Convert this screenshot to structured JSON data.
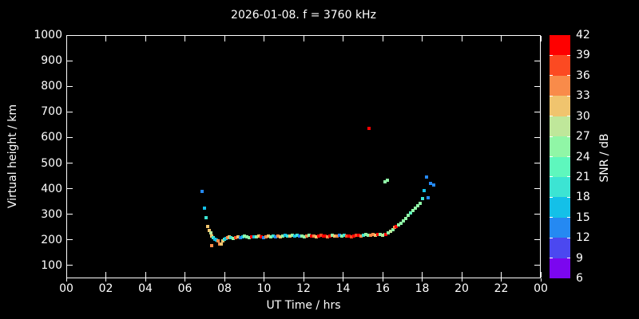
{
  "title": "2026-01-08. f = 3760 kHz",
  "x_axis": {
    "label": "UT Time / hrs",
    "tick_labels": [
      "00",
      "02",
      "04",
      "06",
      "08",
      "10",
      "12",
      "14",
      "16",
      "18",
      "20",
      "22",
      "00"
    ]
  },
  "y_axis": {
    "label": "Virtual height / km",
    "tick_labels": [
      "100",
      "200",
      "300",
      "400",
      "500",
      "600",
      "700",
      "800",
      "900",
      "1000"
    ]
  },
  "colorbar": {
    "label": "SNR / dB",
    "tick_labels": [
      "6",
      "9",
      "12",
      "15",
      "18",
      "21",
      "24",
      "27",
      "30",
      "33",
      "36",
      "39",
      "42"
    ]
  },
  "colors": {
    "background": "#000000",
    "foreground": "#ffffff"
  },
  "chart_data": {
    "type": "scatter",
    "title": "2026-01-08. f = 3760 kHz",
    "xlabel": "UT Time / hrs",
    "ylabel": "Virtual height / km",
    "xlim": [
      0,
      24
    ],
    "ylim": [
      50,
      1000
    ],
    "x_ticks_hours": [
      0,
      2,
      4,
      6,
      8,
      10,
      12,
      14,
      16,
      18,
      20,
      22,
      24
    ],
    "y_ticks_km": [
      100,
      200,
      300,
      400,
      500,
      600,
      700,
      800,
      900,
      1000
    ],
    "grid": false,
    "legend": "colorbar-right",
    "colorbar": {
      "label": "SNR / dB",
      "min": 6,
      "max": 42,
      "step": 3,
      "band_colors_low_to_high": [
        "#7B06EF",
        "#4B48F0",
        "#2589F2",
        "#14C0E8",
        "#3CE4D3",
        "#5EF7BD",
        "#90F6A6",
        "#BFE79A",
        "#F0C46E",
        "#F98B4A",
        "#FC4A22",
        "#FE0000"
      ]
    },
    "points_format": [
      "ut_hour",
      "virtual_height_km",
      "snr_db_band_low"
    ],
    "points": [
      [
        6.87,
        390,
        12
      ],
      [
        7.0,
        325,
        15
      ],
      [
        7.08,
        287,
        18
      ],
      [
        7.17,
        252,
        30
      ],
      [
        7.23,
        238,
        30
      ],
      [
        7.3,
        228,
        27
      ],
      [
        7.35,
        178,
        33
      ],
      [
        7.36,
        215,
        30
      ],
      [
        7.43,
        208,
        18
      ],
      [
        7.51,
        204,
        15
      ],
      [
        7.59,
        200,
        15
      ],
      [
        7.67,
        197,
        33
      ],
      [
        7.75,
        185,
        33
      ],
      [
        7.83,
        183,
        30
      ],
      [
        7.91,
        195,
        30
      ],
      [
        7.99,
        203,
        18
      ],
      [
        8.07,
        207,
        15
      ],
      [
        8.15,
        210,
        33
      ],
      [
        8.23,
        212,
        30
      ],
      [
        8.31,
        208,
        18
      ],
      [
        8.43,
        206,
        24
      ],
      [
        8.55,
        210,
        36
      ],
      [
        8.67,
        212,
        30
      ],
      [
        8.79,
        208,
        12
      ],
      [
        8.91,
        211,
        15
      ],
      [
        9.03,
        214,
        24
      ],
      [
        9.15,
        212,
        24
      ],
      [
        9.27,
        210,
        24
      ],
      [
        9.39,
        213,
        39
      ],
      [
        9.51,
        211,
        15
      ],
      [
        9.63,
        213,
        24
      ],
      [
        9.75,
        215,
        30
      ],
      [
        9.87,
        212,
        39
      ],
      [
        9.99,
        210,
        12
      ],
      [
        10.11,
        213,
        33
      ],
      [
        10.23,
        215,
        30
      ],
      [
        10.35,
        212,
        24
      ],
      [
        10.47,
        214,
        18
      ],
      [
        10.59,
        212,
        12
      ],
      [
        10.71,
        214,
        33
      ],
      [
        10.83,
        212,
        30
      ],
      [
        10.95,
        215,
        24
      ],
      [
        11.07,
        217,
        15
      ],
      [
        11.19,
        214,
        18
      ],
      [
        11.31,
        216,
        30
      ],
      [
        11.43,
        218,
        24
      ],
      [
        11.55,
        215,
        15
      ],
      [
        11.67,
        217,
        18
      ],
      [
        11.79,
        214,
        12
      ],
      [
        11.91,
        216,
        24
      ],
      [
        12.03,
        213,
        24
      ],
      [
        12.15,
        215,
        33
      ],
      [
        12.27,
        217,
        24
      ],
      [
        12.39,
        214,
        39
      ],
      [
        12.51,
        216,
        33
      ],
      [
        12.63,
        213,
        30
      ],
      [
        12.75,
        215,
        39
      ],
      [
        12.87,
        217,
        36
      ],
      [
        12.99,
        214,
        39
      ],
      [
        13.11,
        216,
        39
      ],
      [
        13.23,
        213,
        33
      ],
      [
        13.35,
        215,
        39
      ],
      [
        13.47,
        217,
        24
      ],
      [
        13.59,
        214,
        30
      ],
      [
        13.71,
        216,
        33
      ],
      [
        13.83,
        218,
        12
      ],
      [
        13.95,
        215,
        24
      ],
      [
        14.07,
        217,
        18
      ],
      [
        14.19,
        214,
        36
      ],
      [
        14.31,
        216,
        39
      ],
      [
        14.43,
        213,
        36
      ],
      [
        14.55,
        215,
        39
      ],
      [
        14.67,
        217,
        36
      ],
      [
        14.79,
        219,
        39
      ],
      [
        14.91,
        216,
        33
      ],
      [
        15.03,
        218,
        18
      ],
      [
        15.15,
        220,
        24
      ],
      [
        15.27,
        217,
        24
      ],
      [
        15.39,
        219,
        33
      ],
      [
        15.51,
        221,
        33
      ],
      [
        15.63,
        218,
        30
      ],
      [
        15.75,
        220,
        39
      ],
      [
        15.87,
        222,
        24
      ],
      [
        15.99,
        219,
        27
      ],
      [
        16.11,
        221,
        24
      ],
      [
        16.16,
        222,
        39
      ],
      [
        16.28,
        228,
        24
      ],
      [
        16.4,
        235,
        27
      ],
      [
        16.52,
        241,
        24
      ],
      [
        16.62,
        248,
        33
      ],
      [
        16.7,
        252,
        39
      ],
      [
        16.82,
        258,
        24
      ],
      [
        16.94,
        266,
        24
      ],
      [
        17.06,
        275,
        24
      ],
      [
        17.18,
        285,
        24
      ],
      [
        17.3,
        296,
        24
      ],
      [
        17.42,
        305,
        21
      ],
      [
        17.54,
        315,
        24
      ],
      [
        17.66,
        325,
        24
      ],
      [
        17.78,
        335,
        24
      ],
      [
        17.9,
        342,
        24
      ],
      [
        18.02,
        361,
        18
      ],
      [
        18.1,
        393,
        15
      ],
      [
        18.22,
        446,
        12
      ],
      [
        18.32,
        366,
        12
      ],
      [
        18.44,
        421,
        12
      ],
      [
        18.6,
        414,
        12
      ],
      [
        15.31,
        636,
        39
      ],
      [
        16.12,
        427,
        24
      ],
      [
        16.25,
        432,
        24
      ]
    ]
  }
}
